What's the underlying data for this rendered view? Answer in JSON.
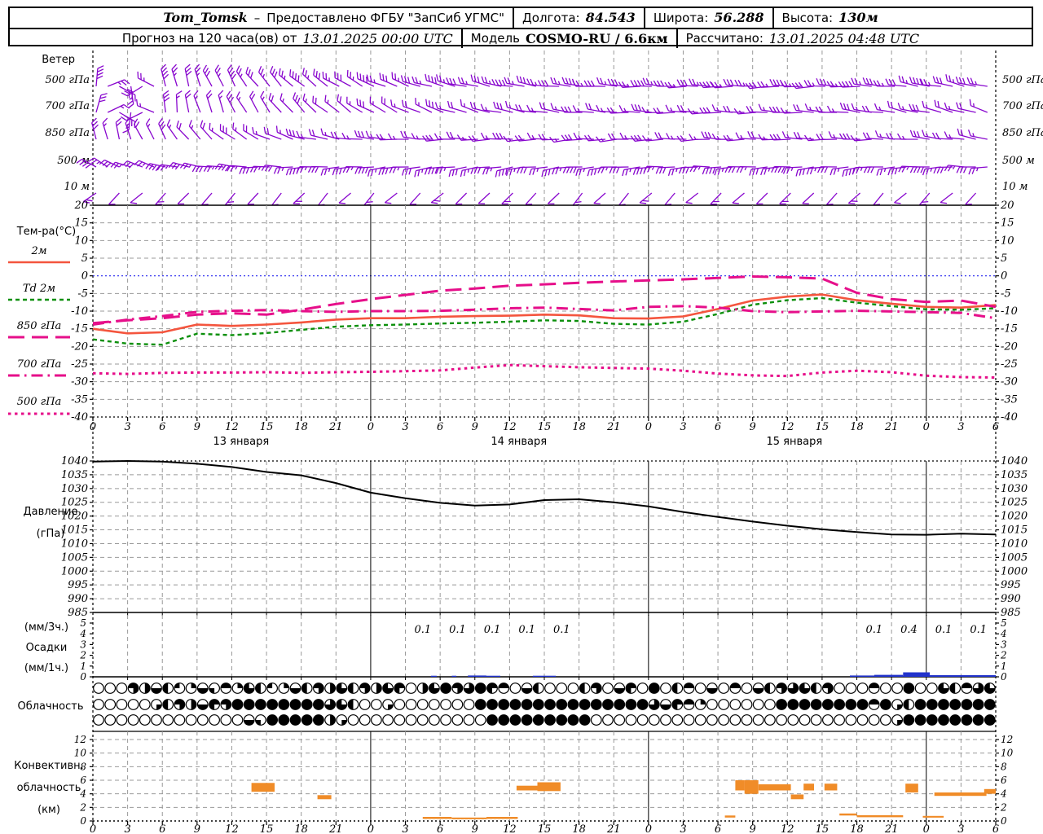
{
  "header": {
    "station": "Tom_Tomsk",
    "dash": "–",
    "provided_by": "Предоставлено ФГБУ \"ЗапСиб УГМС\"",
    "lon_label": "Долгота:",
    "lon_value": "84.543",
    "lat_label": "Широта:",
    "lat_value": "56.288",
    "alt_label": "Высота:",
    "alt_value": "130м",
    "forecast_label": "Прогноз на 120 часа(ов) от",
    "forecast_start": "13.01.2025 00:00 UTC",
    "model_label": "Модель",
    "model_value": "COSMO-RU / 6.6км",
    "calc_label": "Рассчитано:",
    "calc_value": "13.01.2025 04:48 UTC"
  },
  "colors": {
    "barb": "#8806ce",
    "t2m": "#f4553e",
    "td2m": "#0b8f0b",
    "pink": "#e60f8a",
    "pressure": "#000000",
    "precip_bar": "#2233cc",
    "convective": "#f08c28",
    "grid": "#999999",
    "zero_line": "#2222ee",
    "frame": "#000000"
  },
  "x_axis": {
    "total_hours": 78,
    "tick_step": 3,
    "tick_labels": [
      "0",
      "3",
      "6",
      "9",
      "12",
      "15",
      "18",
      "21",
      "0",
      "3",
      "6",
      "9",
      "12",
      "15",
      "18",
      "21",
      "0",
      "3",
      "6",
      "9",
      "12",
      "15",
      "18",
      "21",
      "0",
      "3",
      "6"
    ],
    "day_labels": [
      {
        "text": "13 января",
        "h": 12.8
      },
      {
        "text": "14 января",
        "h": 36.8
      },
      {
        "text": "15 января",
        "h": 60.6
      }
    ]
  },
  "chart_data": [
    {
      "id": "wind",
      "type": "wind-barbs",
      "title": "Ветер",
      "rows": [
        {
          "label": "500 гПа",
          "y": 97,
          "step": 1,
          "stem": 22,
          "feathers": 3,
          "feather_offset": 60,
          "dirs": [
            5,
            350,
            330,
            310,
            295,
            285,
            280,
            275,
            272,
            270,
            268,
            272,
            280,
            285
          ]
        },
        {
          "label": "700 гПа",
          "y": 129,
          "step": 1,
          "stem": 22,
          "feathers": 2,
          "feather_offset": 60,
          "dirs": [
            10,
            355,
            335,
            315,
            300,
            290,
            282,
            276,
            272,
            270,
            272,
            276,
            283,
            288
          ]
        },
        {
          "label": "850 гПа",
          "y": 162,
          "step": 1,
          "stem": 21,
          "feathers": 2,
          "feather_offset": 60,
          "dirs": [
            350,
            330,
            305,
            285,
            275,
            270,
            268,
            266,
            268,
            270,
            272,
            270,
            276,
            281
          ]
        },
        {
          "label": "500 м",
          "y": 196,
          "step": 1,
          "stem": 20,
          "feathers": 3,
          "feather_offset": -65,
          "dirs": [
            300,
            285,
            275,
            268,
            265,
            262,
            262,
            264,
            266,
            268,
            266,
            264,
            268,
            272
          ]
        },
        {
          "label": "10 м",
          "y": 228,
          "step": 2,
          "stem": 19,
          "feathers": 1,
          "feather_offset": -135,
          "dirs": [
            230,
            225,
            220,
            222,
            225,
            228,
            225,
            222,
            225,
            228,
            226,
            224,
            226,
            228
          ]
        }
      ]
    },
    {
      "id": "temperature",
      "type": "line",
      "title": "Тем-ра(°C)",
      "ylim": [
        -40,
        20
      ],
      "y_tick_step": 5,
      "zero_line": 0,
      "x_step_hours": 3,
      "series": [
        {
          "name": "2м",
          "style": "solid",
          "color_key": "t2m",
          "values": [
            -15,
            -16.3,
            -16,
            -13.8,
            -14.2,
            -13.8,
            -13.2,
            -12.4,
            -12,
            -12,
            -11.6,
            -11.4,
            -11.3,
            -11,
            -11.2,
            -12,
            -12.1,
            -11.5,
            -9.4,
            -7,
            -5.9,
            -5.3,
            -6.9,
            -7.9,
            -8.8,
            -9,
            -8.3
          ]
        },
        {
          "name": "Td  2м",
          "style": "dashed",
          "color_key": "td2m",
          "values": [
            -18,
            -19.2,
            -19.5,
            -16.4,
            -16.8,
            -16.2,
            -15.3,
            -14.4,
            -14,
            -13.8,
            -13.5,
            -13.3,
            -13,
            -12.6,
            -12.8,
            -13.6,
            -13.8,
            -13,
            -10.8,
            -8.2,
            -6.9,
            -6.3,
            -7.6,
            -8.6,
            -9.5,
            -9.6,
            -9.2
          ]
        },
        {
          "name": "850 гПа",
          "style": "longdash",
          "color_key": "pink",
          "values": [
            -13.4,
            -12.6,
            -12,
            -11,
            -10.6,
            -11,
            -9.6,
            -8,
            -6.6,
            -5.4,
            -4.2,
            -3.6,
            -2.8,
            -2.4,
            -2,
            -1.6,
            -1.3,
            -1,
            -0.6,
            -0.2,
            -0.4,
            -0.8,
            -4.8,
            -6.6,
            -7.4,
            -7,
            -8.8
          ]
        },
        {
          "name": "700 гПа",
          "style": "dashdot",
          "color_key": "pink",
          "values": [
            -13.8,
            -12.4,
            -11.4,
            -10.2,
            -9.9,
            -9.7,
            -10,
            -10.2,
            -10,
            -10,
            -9.9,
            -9.6,
            -9.2,
            -9,
            -9.4,
            -9.8,
            -8.8,
            -8.6,
            -9,
            -10,
            -10.3,
            -10.1,
            -9.9,
            -10.1,
            -10.3,
            -10.5,
            -12
          ]
        },
        {
          "name": "500 гПа",
          "style": "shortdash",
          "color_key": "pink",
          "values": [
            -27.6,
            -27.8,
            -27.5,
            -27.4,
            -27.4,
            -27.3,
            -27.5,
            -27.3,
            -27.2,
            -27,
            -26.8,
            -26,
            -25.3,
            -25.6,
            -25.9,
            -26.1,
            -26.3,
            -26.9,
            -27.7,
            -28.2,
            -28.4,
            -27.4,
            -26.9,
            -27.3,
            -28.3,
            -28.7,
            -28.8
          ]
        }
      ]
    },
    {
      "id": "pressure",
      "type": "line",
      "title_lines": [
        "Давление",
        "(гПа)"
      ],
      "ylim": [
        985,
        1040
      ],
      "y_tick_step": 5,
      "x_step_hours": 3,
      "series": [
        {
          "name": "Давление",
          "style": "solid",
          "color_key": "pressure",
          "values": [
            1039.8,
            1040,
            1039.8,
            1039,
            1037.8,
            1036,
            1034.8,
            1032,
            1028.5,
            1026.5,
            1024.8,
            1023.8,
            1024.2,
            1025.8,
            1026.1,
            1025,
            1023.5,
            1021.5,
            1019.7,
            1018,
            1016.5,
            1015.2,
            1014.2,
            1013.3,
            1013.2,
            1013.6,
            1013.3
          ]
        }
      ]
    },
    {
      "id": "precipitation",
      "type": "bar",
      "title_lines": [
        "(мм/3ч.)",
        "Осадки",
        "(мм/1ч.)"
      ],
      "ylim": [
        0,
        5
      ],
      "y_tick_step": 1,
      "amount_labels": [
        {
          "h": 28.5,
          "text": "0.1"
        },
        {
          "h": 31.5,
          "text": "0.1"
        },
        {
          "h": 34.5,
          "text": "0.1"
        },
        {
          "h": 37.5,
          "text": "0.1"
        },
        {
          "h": 40.5,
          "text": "0.1"
        },
        {
          "h": 67.5,
          "text": "0.1"
        },
        {
          "h": 70.5,
          "text": "0.4"
        },
        {
          "h": 73.5,
          "text": "0.1"
        },
        {
          "h": 76.5,
          "text": "0.1"
        }
      ],
      "bars": [
        {
          "h1": 29.2,
          "h2": 29.7,
          "v": 0.1
        },
        {
          "h1": 31.0,
          "h2": 31.4,
          "v": 0.1
        },
        {
          "h1": 32.4,
          "h2": 34.0,
          "v": 0.12
        },
        {
          "h1": 34.0,
          "h2": 35.2,
          "v": 0.1
        },
        {
          "h1": 38.0,
          "h2": 40.0,
          "v": 0.1
        },
        {
          "h1": 65.4,
          "h2": 67.5,
          "v": 0.12
        },
        {
          "h1": 67.5,
          "h2": 70.0,
          "v": 0.18
        },
        {
          "h1": 70.0,
          "h2": 72.3,
          "v": 0.42
        },
        {
          "h1": 72.3,
          "h2": 78.0,
          "v": 0.15
        }
      ]
    },
    {
      "id": "cloudiness",
      "type": "cloud-circles",
      "title": "Облачность",
      "rows": [
        {
          "level": "upper",
          "quarters": "000322211212132112232323233023433432022000230230402202020223332300020040032233"
        },
        {
          "level": "middle",
          "quarters": "000001232233444444443320010000000444444444444444323210000004444444424124444444"
        },
        {
          "level": "lower",
          "quarters": "000000000000021444442100000000000044444444400000000000000000000000000144444444"
        }
      ]
    },
    {
      "id": "convective",
      "type": "blocks",
      "title_lines": [
        "Конвективн.",
        "облачность",
        "(км)"
      ],
      "ylim": [
        0,
        13.2
      ],
      "y_tick_step": 2,
      "unit": "км",
      "blocks": [
        {
          "h1": 13.7,
          "h2": 15.7,
          "k1": 4.3,
          "k2": 5.6
        },
        {
          "h1": 19.4,
          "h2": 20.6,
          "k1": 3.2,
          "k2": 3.8
        },
        {
          "h1": 28.5,
          "h2": 31.0,
          "k1": 0.3,
          "k2": 0.6
        },
        {
          "h1": 31.0,
          "h2": 34.0,
          "k1": 0.25,
          "k2": 0.5
        },
        {
          "h1": 34.0,
          "h2": 36.7,
          "k1": 0.3,
          "k2": 0.6
        },
        {
          "h1": 36.6,
          "h2": 38.4,
          "k1": 4.5,
          "k2": 5.2
        },
        {
          "h1": 38.4,
          "h2": 40.4,
          "k1": 4.4,
          "k2": 5.7
        },
        {
          "h1": 54.6,
          "h2": 55.5,
          "k1": 0.5,
          "k2": 0.8
        },
        {
          "h1": 55.5,
          "h2": 56.3,
          "k1": 4.5,
          "k2": 6.0
        },
        {
          "h1": 56.3,
          "h2": 57.5,
          "k1": 4.0,
          "k2": 6.0
        },
        {
          "h1": 57.5,
          "h2": 60.3,
          "k1": 4.5,
          "k2": 5.4
        },
        {
          "h1": 60.3,
          "h2": 61.4,
          "k1": 3.2,
          "k2": 3.9
        },
        {
          "h1": 61.4,
          "h2": 62.3,
          "k1": 4.5,
          "k2": 5.5
        },
        {
          "h1": 63.2,
          "h2": 64.3,
          "k1": 4.5,
          "k2": 5.5
        },
        {
          "h1": 64.5,
          "h2": 66.0,
          "k1": 0.8,
          "k2": 1.1
        },
        {
          "h1": 66.0,
          "h2": 70.0,
          "k1": 0.55,
          "k2": 0.85
        },
        {
          "h1": 70.2,
          "h2": 71.3,
          "k1": 4.2,
          "k2": 5.5
        },
        {
          "h1": 71.7,
          "h2": 73.5,
          "k1": 0.5,
          "k2": 0.75
        },
        {
          "h1": 72.7,
          "h2": 77.2,
          "k1": 3.7,
          "k2": 4.2
        },
        {
          "h1": 77.0,
          "h2": 78.0,
          "k1": 4.0,
          "k2": 4.7
        }
      ]
    }
  ]
}
